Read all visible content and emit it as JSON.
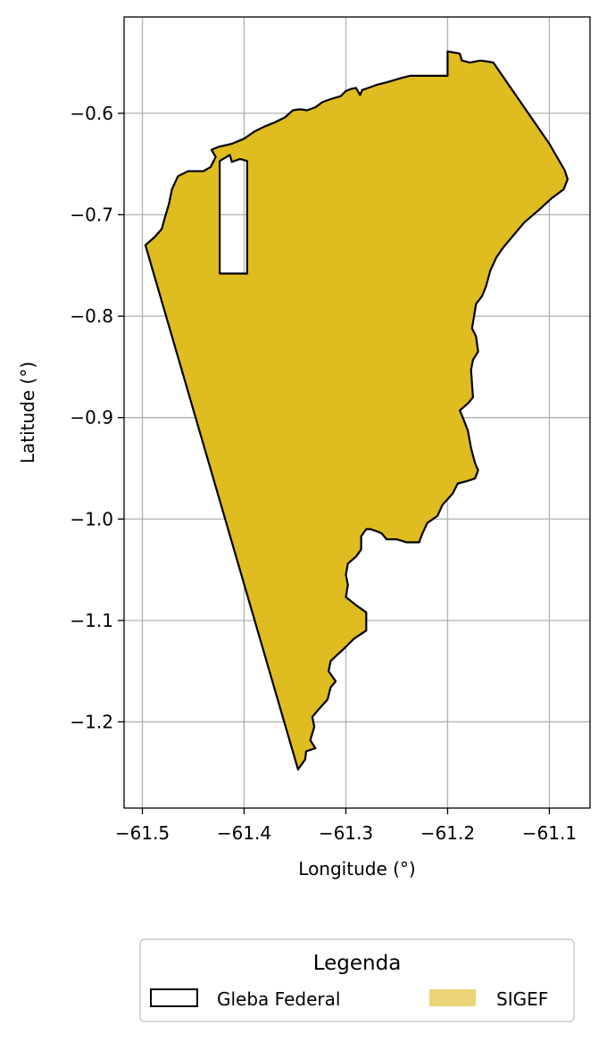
{
  "chart_data": {
    "type": "map",
    "xlabel": "Longitude (°)",
    "ylabel": "Latitude (°)",
    "xlim": [
      -61.518,
      -61.06
    ],
    "ylim": [
      -1.285,
      -0.505
    ],
    "x_ticks": [
      -61.5,
      -61.4,
      -61.3,
      -61.2,
      -61.1
    ],
    "y_ticks": [
      -0.6,
      -0.7,
      -0.8,
      -0.9,
      -1.0,
      -1.1,
      -1.2
    ],
    "x_tick_labels": [
      "−61.5",
      "−61.4",
      "−61.3",
      "−61.2",
      "−61.1"
    ],
    "y_tick_labels": [
      "−0.6",
      "−0.7",
      "−0.8",
      "−0.9",
      "−1.0",
      "−1.1",
      "−1.2"
    ],
    "grid": true,
    "colors": {
      "sigef_fill": "#DFBC1F",
      "outline": "#000000",
      "legend_sigef": "#EAD477",
      "grid": "#b0b0b0"
    },
    "layers": [
      {
        "name": "SIGEF",
        "kind": "filled",
        "outer": [
          [
            -61.497,
            -0.73
          ],
          [
            -61.488,
            -0.722
          ],
          [
            -61.481,
            -0.714
          ],
          [
            -61.478,
            -0.703
          ],
          [
            -61.474,
            -0.69
          ],
          [
            -61.471,
            -0.675
          ],
          [
            -61.465,
            -0.662
          ],
          [
            -61.455,
            -0.657
          ],
          [
            -61.44,
            -0.657
          ],
          [
            -61.433,
            -0.653
          ],
          [
            -61.428,
            -0.643
          ],
          [
            -61.432,
            -0.636
          ],
          [
            -61.425,
            -0.633
          ],
          [
            -61.412,
            -0.63
          ],
          [
            -61.4,
            -0.625
          ],
          [
            -61.39,
            -0.618
          ],
          [
            -61.38,
            -0.613
          ],
          [
            -61.37,
            -0.609
          ],
          [
            -61.36,
            -0.604
          ],
          [
            -61.352,
            -0.597
          ],
          [
            -61.345,
            -0.596
          ],
          [
            -61.338,
            -0.597
          ],
          [
            -61.33,
            -0.594
          ],
          [
            -61.323,
            -0.589
          ],
          [
            -61.315,
            -0.586
          ],
          [
            -61.308,
            -0.584
          ],
          [
            -61.305,
            -0.583
          ],
          [
            -61.3,
            -0.578
          ],
          [
            -61.295,
            -0.576
          ],
          [
            -61.29,
            -0.575
          ],
          [
            -61.286,
            -0.582
          ],
          [
            -61.284,
            -0.577
          ],
          [
            -61.278,
            -0.575
          ],
          [
            -61.27,
            -0.572
          ],
          [
            -61.262,
            -0.57
          ],
          [
            -61.255,
            -0.568
          ],
          [
            -61.245,
            -0.565
          ],
          [
            -61.237,
            -0.563
          ],
          [
            -61.2,
            -0.563
          ],
          [
            -61.2,
            -0.539
          ],
          [
            -61.188,
            -0.541
          ],
          [
            -61.186,
            -0.548
          ],
          [
            -61.178,
            -0.55
          ],
          [
            -61.168,
            -0.548
          ],
          [
            -61.16,
            -0.549
          ],
          [
            -61.155,
            -0.55
          ],
          [
            -61.1,
            -0.63
          ],
          [
            -61.085,
            -0.656
          ],
          [
            -61.082,
            -0.665
          ],
          [
            -61.086,
            -0.675
          ],
          [
            -61.098,
            -0.684
          ],
          [
            -61.11,
            -0.695
          ],
          [
            -61.125,
            -0.708
          ],
          [
            -61.135,
            -0.72
          ],
          [
            -61.145,
            -0.732
          ],
          [
            -61.152,
            -0.742
          ],
          [
            -61.158,
            -0.755
          ],
          [
            -61.162,
            -0.77
          ],
          [
            -61.166,
            -0.78
          ],
          [
            -61.172,
            -0.788
          ],
          [
            -61.174,
            -0.8
          ],
          [
            -61.176,
            -0.812
          ],
          [
            -61.172,
            -0.82
          ],
          [
            -61.17,
            -0.835
          ],
          [
            -61.175,
            -0.843
          ],
          [
            -61.177,
            -0.853
          ],
          [
            -61.176,
            -0.867
          ],
          [
            -61.175,
            -0.88
          ],
          [
            -61.18,
            -0.886
          ],
          [
            -61.188,
            -0.893
          ],
          [
            -61.185,
            -0.9
          ],
          [
            -61.18,
            -0.913
          ],
          [
            -61.177,
            -0.93
          ],
          [
            -61.173,
            -0.945
          ],
          [
            -61.17,
            -0.952
          ],
          [
            -61.173,
            -0.96
          ],
          [
            -61.182,
            -0.963
          ],
          [
            -61.19,
            -0.965
          ],
          [
            -61.195,
            -0.975
          ],
          [
            -61.205,
            -0.986
          ],
          [
            -61.21,
            -0.997
          ],
          [
            -61.22,
            -1.004
          ],
          [
            -61.225,
            -1.015
          ],
          [
            -61.228,
            -1.023
          ],
          [
            -61.24,
            -1.023
          ],
          [
            -61.25,
            -1.02
          ],
          [
            -61.26,
            -1.02
          ],
          [
            -61.265,
            -1.014
          ],
          [
            -61.27,
            -1.012
          ],
          [
            -61.276,
            -1.01
          ],
          [
            -61.28,
            -1.01
          ],
          [
            -61.285,
            -1.017
          ],
          [
            -61.285,
            -1.03
          ],
          [
            -61.29,
            -1.037
          ],
          [
            -61.298,
            -1.044
          ],
          [
            -61.3,
            -1.055
          ],
          [
            -61.298,
            -1.065
          ],
          [
            -61.3,
            -1.077
          ],
          [
            -61.29,
            -1.085
          ],
          [
            -61.28,
            -1.092
          ],
          [
            -61.28,
            -1.1
          ],
          [
            -61.28,
            -1.11
          ],
          [
            -61.292,
            -1.118
          ],
          [
            -61.3,
            -1.126
          ],
          [
            -61.315,
            -1.14
          ],
          [
            -61.317,
            -1.15
          ],
          [
            -61.31,
            -1.16
          ],
          [
            -61.315,
            -1.166
          ],
          [
            -61.318,
            -1.178
          ],
          [
            -61.327,
            -1.188
          ],
          [
            -61.333,
            -1.195
          ],
          [
            -61.331,
            -1.205
          ],
          [
            -61.335,
            -1.218
          ],
          [
            -61.33,
            -1.226
          ],
          [
            -61.339,
            -1.229
          ],
          [
            -61.34,
            -1.237
          ],
          [
            -61.347,
            -1.247
          ],
          [
            -61.497,
            -0.73
          ]
        ],
        "hole": [
          [
            -61.424,
            -0.647
          ],
          [
            -61.414,
            -0.641
          ],
          [
            -61.412,
            -0.648
          ],
          [
            -61.404,
            -0.645
          ],
          [
            -61.397,
            -0.647
          ],
          [
            -61.397,
            -0.758
          ],
          [
            -61.424,
            -0.758
          ],
          [
            -61.424,
            -0.647
          ]
        ]
      }
    ],
    "legend": {
      "title": "Legenda",
      "entries": [
        {
          "label": "Gleba Federal",
          "style": "outline"
        },
        {
          "label": "SIGEF",
          "style": "fill"
        }
      ],
      "placement": "bottom-center"
    }
  }
}
